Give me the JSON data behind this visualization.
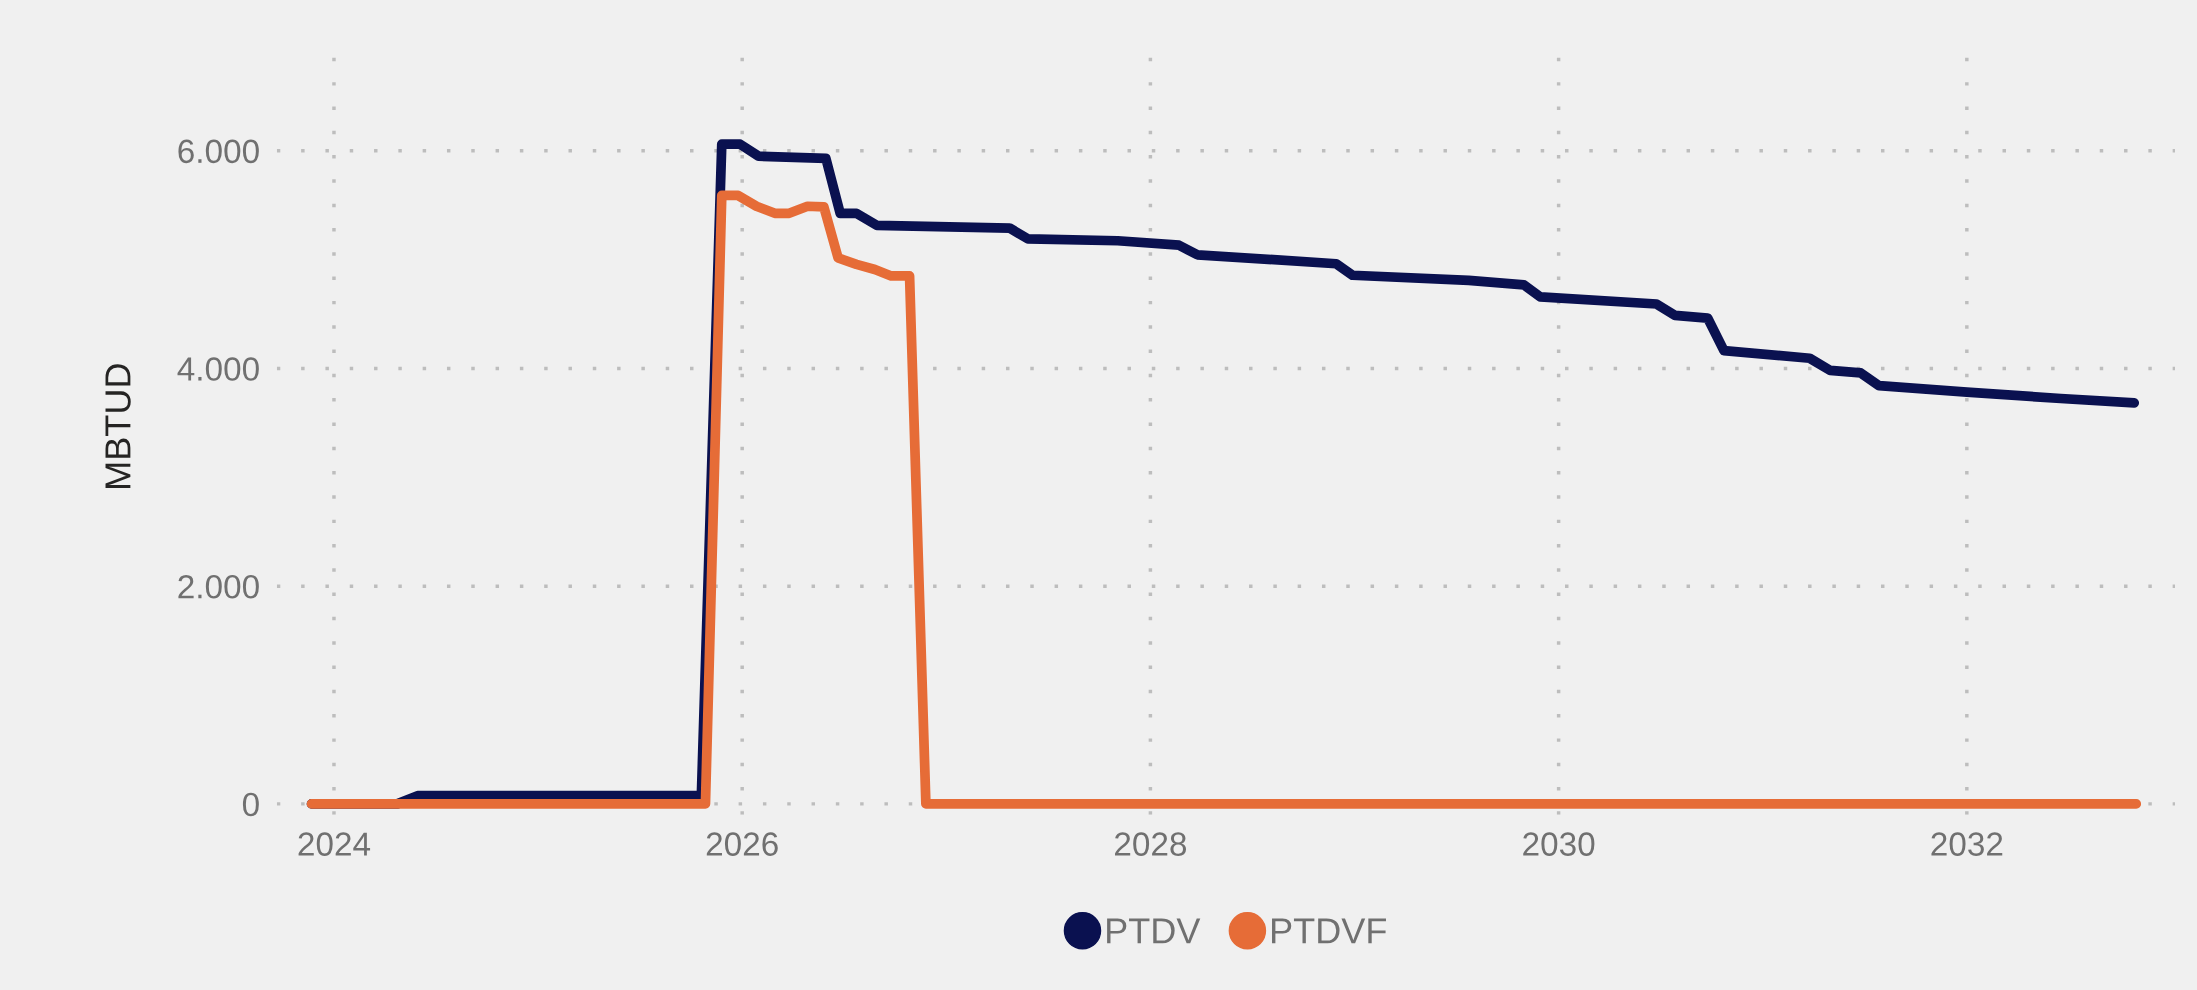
{
  "chart_data": {
    "type": "line",
    "ylabel": "MBTUD",
    "xlim": [
      2023.72,
      2033.02
    ],
    "xticks": [
      2024,
      2026,
      2028,
      2030,
      2032
    ],
    "ylim": [
      -100,
      7030
    ],
    "yticks": [
      {
        "value": 0,
        "label": "0"
      },
      {
        "value": 2000,
        "label": "2.000"
      },
      {
        "value": 4000,
        "label": "4.000"
      },
      {
        "value": 6000,
        "label": "6.000"
      }
    ],
    "grid": true,
    "legend": "bottom",
    "marker": "none",
    "line_style": "solid",
    "series": [
      {
        "name": "PTDV",
        "color": "#0a1150",
        "x": [
          2023.89,
          2024.31,
          2024.41,
          2025.8,
          2025.9,
          2025.99,
          2026.08,
          2026.41,
          2026.48,
          2026.56,
          2026.66,
          2027.31,
          2027.4,
          2027.84,
          2028.14,
          2028.23,
          2028.91,
          2028.99,
          2029.56,
          2029.83,
          2029.91,
          2030.48,
          2030.57,
          2030.73,
          2030.81,
          2031.23,
          2031.33,
          2031.48,
          2031.57,
          2032.0,
          2032.46,
          2032.82
        ],
        "values": [
          0,
          0,
          75,
          75,
          6060,
          6060,
          5950,
          5930,
          5425,
          5425,
          5314,
          5290,
          5190,
          5173,
          5132,
          5044,
          4962,
          4856,
          4809,
          4768,
          4657,
          4592,
          4487,
          4463,
          4164,
          4094,
          3982,
          3959,
          3842,
          3783,
          3724,
          3683
        ]
      },
      {
        "name": "PTDVF",
        "color": "#e66c37",
        "x": [
          2023.89,
          2025.82,
          2025.9,
          2025.98,
          2026.07,
          2026.16,
          2026.23,
          2026.32,
          2026.4,
          2026.47,
          2026.56,
          2026.65,
          2026.73,
          2026.82,
          2026.9,
          2032.83
        ],
        "values": [
          0,
          0,
          5589,
          5589,
          5490,
          5425,
          5425,
          5490,
          5484,
          5015,
          4956,
          4909,
          4850,
          4850,
          0,
          0
        ]
      }
    ]
  }
}
